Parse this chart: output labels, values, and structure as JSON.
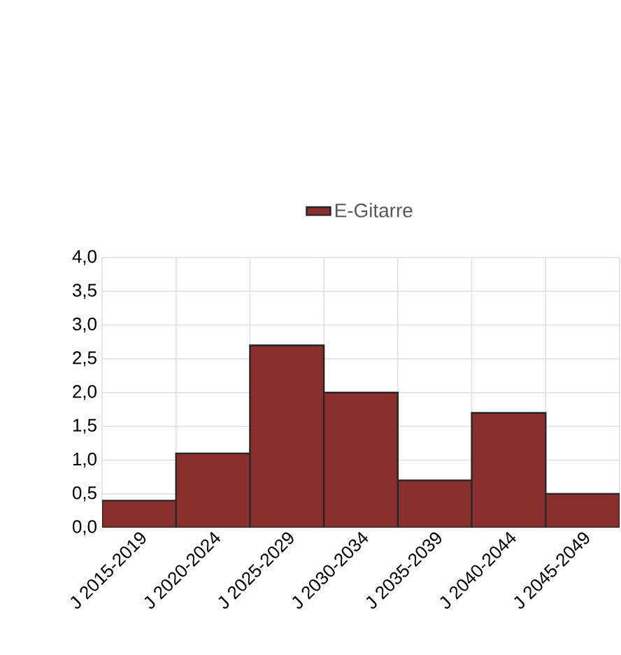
{
  "chart_data": {
    "type": "bar",
    "categories": [
      "J 2015-2019",
      "J 2020-2024",
      "J 2025-2029",
      "J 2030-2034",
      "J 2035-2039",
      "J 2040-2044",
      "J 2045-2049"
    ],
    "series": [
      {
        "name": "E-Gitarre",
        "color": "#8b2e2e",
        "values": [
          0.4,
          1.1,
          2.7,
          2.0,
          0.7,
          1.7,
          0.5
        ]
      }
    ],
    "ylim": [
      0,
      4
    ],
    "yticks": [
      {
        "value": 0,
        "label": "0,0"
      },
      {
        "value": 0.5,
        "label": "0,5"
      },
      {
        "value": 1,
        "label": "1,0"
      },
      {
        "value": 1.5,
        "label": "1,5"
      },
      {
        "value": 2,
        "label": "2,0"
      },
      {
        "value": 2.5,
        "label": "2,5"
      },
      {
        "value": 3,
        "label": "3,0"
      },
      {
        "value": 3.5,
        "label": "3,5"
      },
      {
        "value": 4,
        "label": "4,0"
      }
    ],
    "grid": true,
    "legend": "top"
  }
}
